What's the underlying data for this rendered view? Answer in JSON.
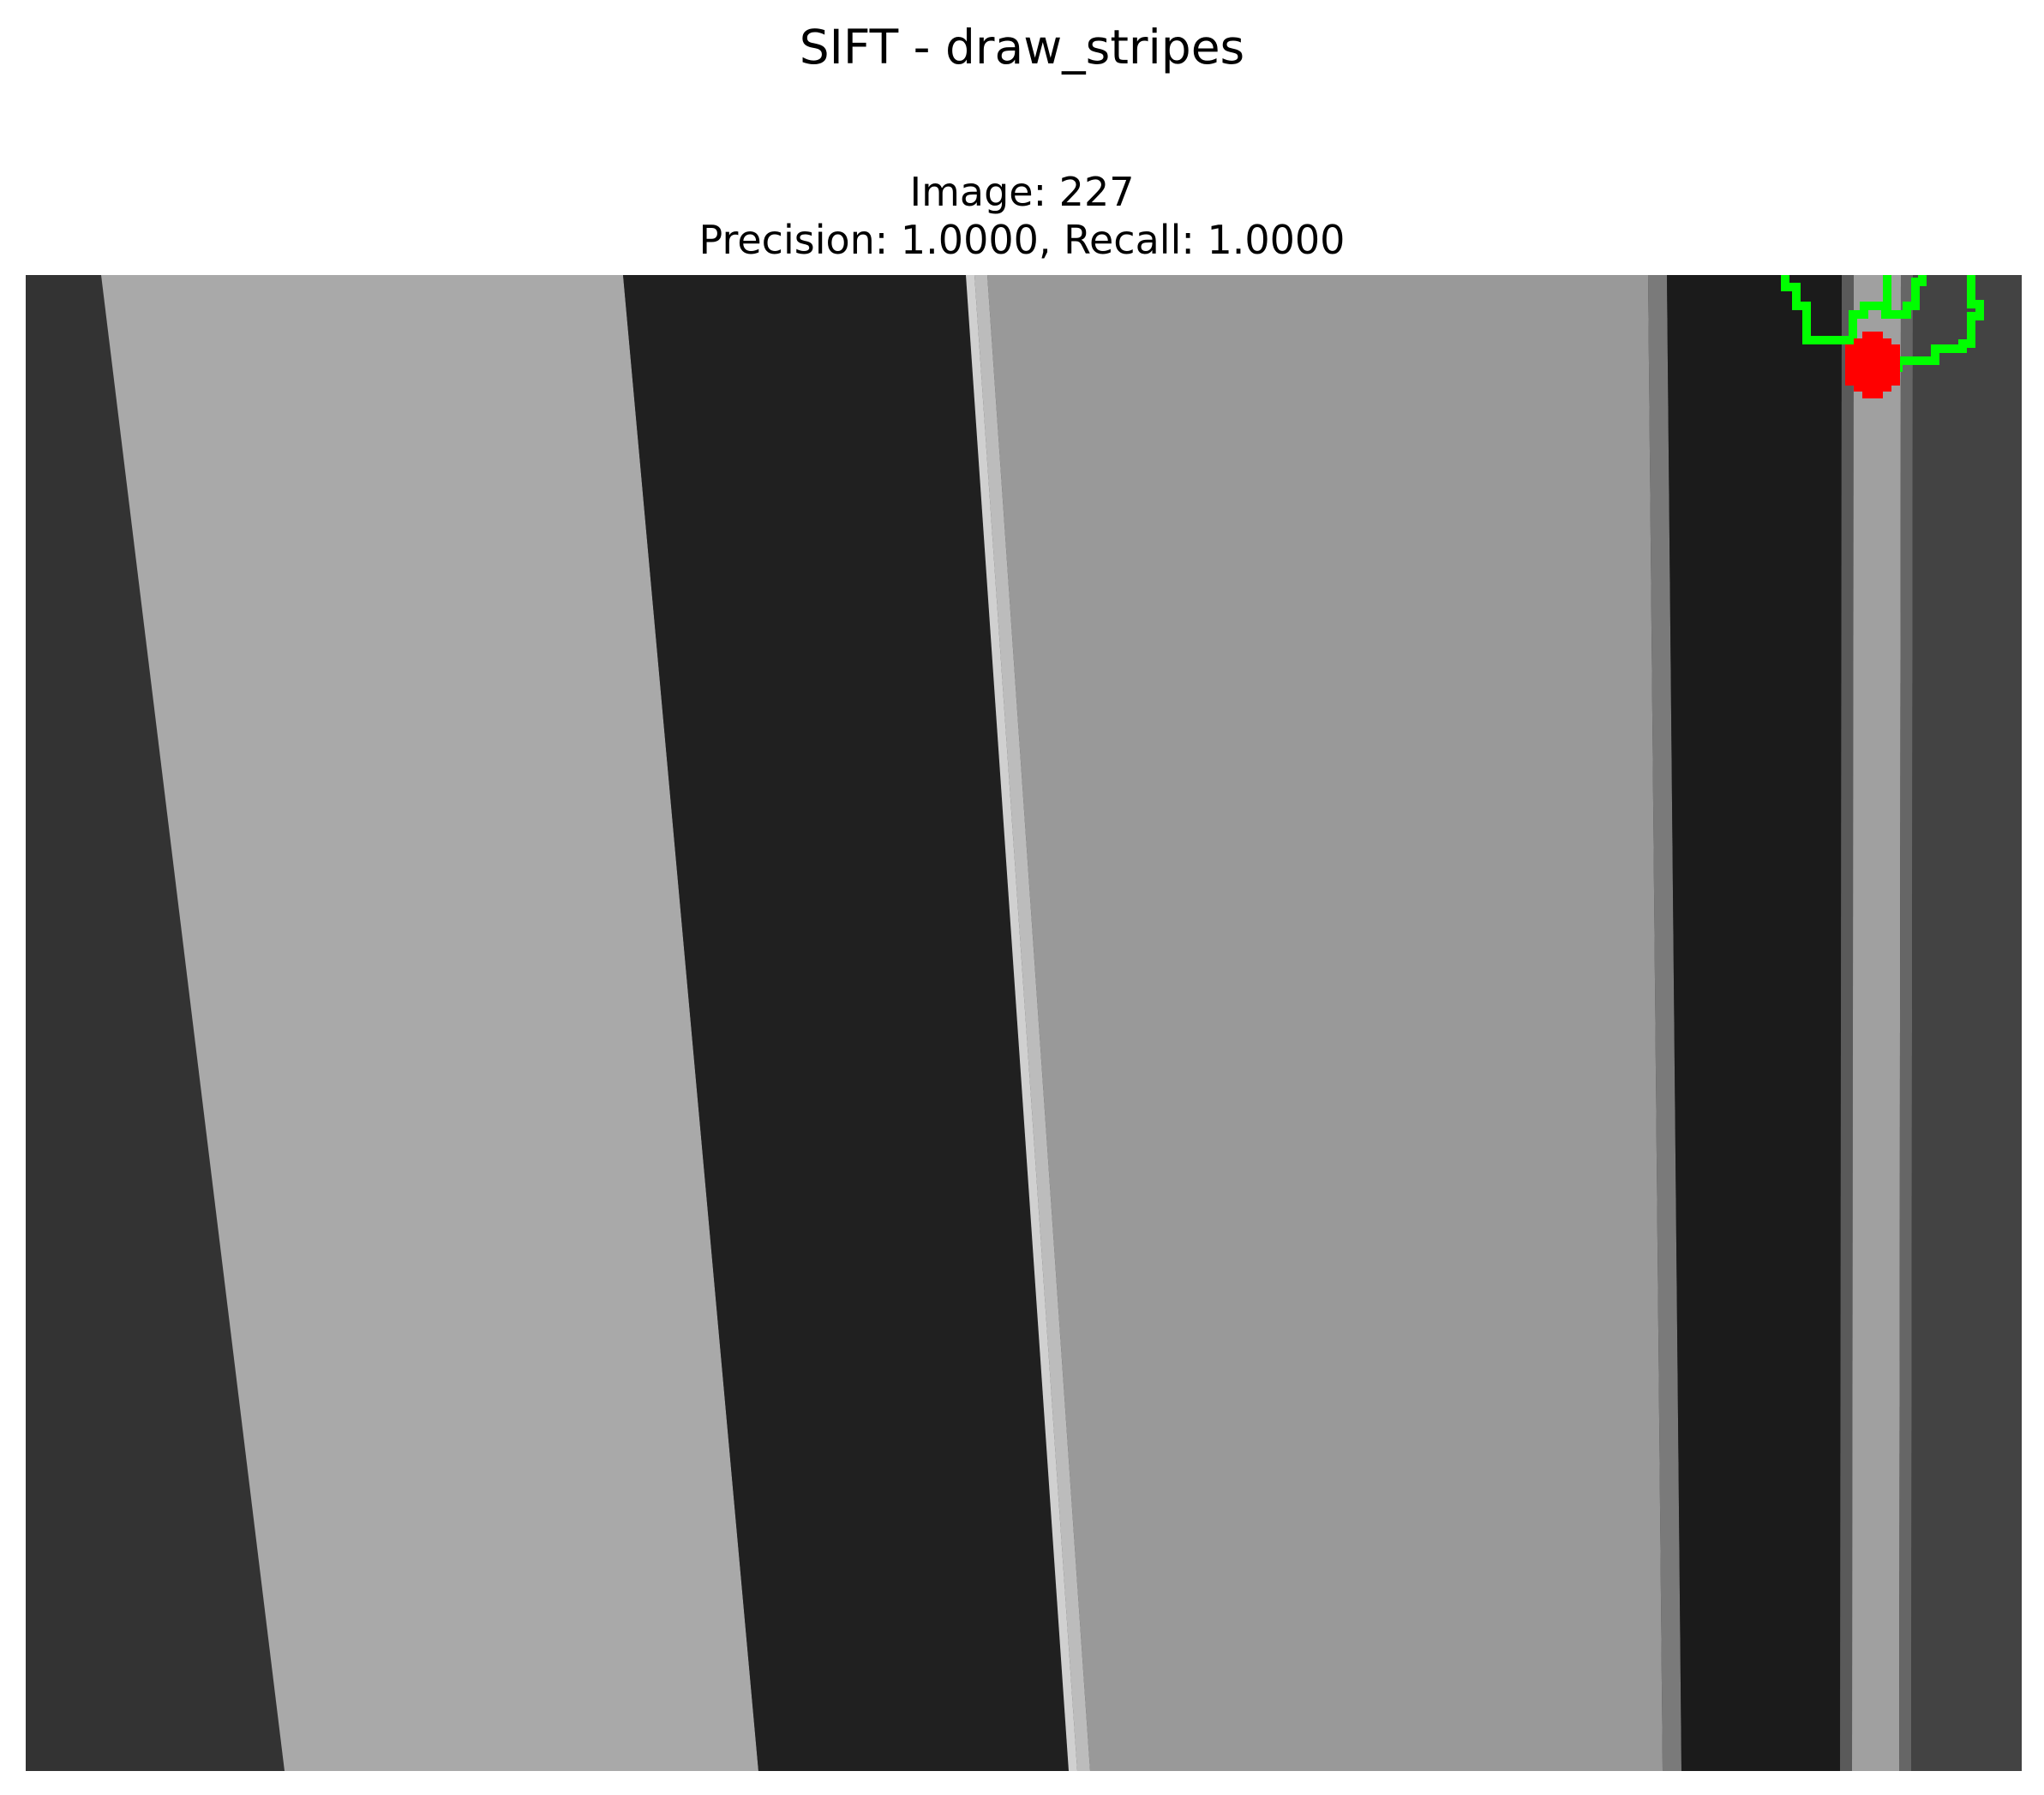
{
  "figure": {
    "suptitle": "SIFT - draw_stripes"
  },
  "panel": {
    "image_label": "Image: 227",
    "metrics_label": "Precision: 1.0000, Recall: 1.0000"
  },
  "colors": {
    "background": "#ffffff",
    "dark_stripe": "#333333",
    "black_stripe": "#202020",
    "light_stripe": "#a9a9a9",
    "mid_stripe": "#999999",
    "highlight_line": "#d0d0d0",
    "ground_truth_marker": "#00ff00",
    "detection_marker": "#ff0000"
  },
  "markers": {
    "ground_truth": "green-outline-keypoint",
    "detection": "red-cross-keypoint"
  }
}
